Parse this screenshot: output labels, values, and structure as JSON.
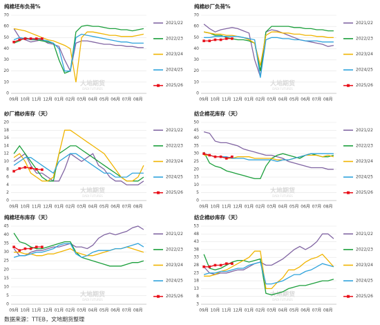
{
  "source": "数据来源：TTEB，文地期货整理",
  "watermark": {
    "cn": "大地期货",
    "en": "DADI FUTURES"
  },
  "chart_data": [
    {
      "type": "line",
      "title": "纯棉坯布负荷%",
      "categories": [
        "09月",
        null,
        "10月",
        null,
        "11月",
        null,
        "12月",
        null,
        "01月",
        null,
        "02月",
        null,
        "03月",
        null,
        "04月",
        null,
        "05月",
        null,
        "06月",
        null,
        "07月",
        null,
        "08月",
        null
      ],
      "ylim": [
        0,
        70
      ],
      "yticks": [
        0,
        10,
        20,
        30,
        40,
        50,
        60,
        70
      ],
      "grid": true,
      "series": [
        {
          "name": "2021/22",
          "color": "#8064a2",
          "values": [
            58,
            50,
            48,
            46,
            47,
            48,
            45,
            44,
            42,
            30,
            20,
            45,
            47,
            47,
            46,
            45,
            44,
            44,
            43,
            43,
            42,
            42,
            41,
            41
          ]
        },
        {
          "name": "2022/23",
          "color": "#1a9e3a",
          "values": [
            45,
            47,
            50,
            48,
            48,
            47,
            46,
            45,
            30,
            18,
            20,
            55,
            60,
            61,
            60,
            60,
            59,
            58,
            58,
            57,
            57,
            56,
            57,
            58
          ]
        },
        {
          "name": "2023/24",
          "color": "#f0b400",
          "values": [
            58,
            57,
            56,
            54,
            52,
            50,
            48,
            47,
            45,
            43,
            40,
            10,
            50,
            55,
            55,
            54,
            53,
            52,
            52,
            51,
            51,
            51,
            52,
            53
          ]
        },
        {
          "name": "2024/25",
          "color": "#2ea3dc",
          "values": [
            48,
            50,
            49,
            48,
            49,
            48,
            47,
            45,
            40,
            20,
            20,
            50,
            53,
            52,
            51,
            50,
            49,
            48,
            47,
            46,
            46,
            45,
            45,
            45
          ]
        },
        {
          "name": "2025/26",
          "color": "#e8101a",
          "marker": "square",
          "values": [
            46,
            48,
            49,
            49,
            49,
            49,
            null,
            null,
            null,
            null,
            null,
            null,
            null,
            null,
            null,
            null,
            null,
            null,
            null,
            null,
            null,
            null,
            null,
            null
          ]
        }
      ]
    },
    {
      "type": "line",
      "title": "纯棉纱厂负荷%",
      "categories": [
        "09月",
        null,
        "10月",
        null,
        "11月",
        null,
        "12月",
        null,
        "01月",
        null,
        "02月",
        null,
        "03月",
        null,
        "04月",
        null,
        "05月",
        null,
        "06月",
        null,
        "07月",
        null,
        "08月",
        null
      ],
      "ylim": [
        0,
        70
      ],
      "yticks": [
        0,
        10,
        20,
        30,
        40,
        50,
        60,
        70
      ],
      "grid": true,
      "series": [
        {
          "name": "2021/22",
          "color": "#8064a2",
          "values": [
            62,
            58,
            55,
            57,
            58,
            59,
            58,
            56,
            54,
            30,
            15,
            55,
            57,
            56,
            54,
            52,
            50,
            48,
            47,
            46,
            45,
            44,
            42,
            43
          ]
        },
        {
          "name": "2022/23",
          "color": "#1a9e3a",
          "values": [
            55,
            54,
            52,
            52,
            50,
            49,
            48,
            48,
            47,
            45,
            20,
            55,
            60,
            60,
            60,
            60,
            59,
            59,
            58,
            58,
            57,
            57,
            56,
            56
          ]
        },
        {
          "name": "2023/24",
          "color": "#f0b400",
          "values": [
            55,
            54,
            53,
            53,
            52,
            52,
            51,
            50,
            48,
            45,
            25,
            52,
            55,
            55,
            54,
            54,
            53,
            53,
            52,
            52,
            51,
            51,
            50,
            50
          ]
        },
        {
          "name": "2024/25",
          "color": "#2ea3dc",
          "values": [
            50,
            50,
            51,
            51,
            51,
            51,
            51,
            50,
            49,
            48,
            14,
            48,
            50,
            50,
            49,
            49,
            48,
            48,
            47,
            47,
            47,
            46,
            46,
            46
          ]
        },
        {
          "name": "2025/26",
          "color": "#e8101a",
          "marker": "square",
          "values": [
            47,
            47,
            48,
            48,
            49,
            49,
            null,
            null,
            null,
            null,
            null,
            null,
            null,
            null,
            null,
            null,
            null,
            null,
            null,
            null,
            null,
            null,
            null,
            null
          ]
        }
      ]
    },
    {
      "type": "line",
      "title": "纱厂棉纱库存（天）",
      "categories": [
        "09月",
        null,
        "10月",
        null,
        "11月",
        null,
        "12月",
        null,
        "01月",
        null,
        "02月",
        null,
        "03月",
        null,
        "04月",
        null,
        "05月",
        null,
        "06月",
        null,
        "07月",
        null,
        "08月",
        null
      ],
      "ylim": [
        0,
        20
      ],
      "yticks": [
        0,
        2,
        4,
        6,
        8,
        10,
        12,
        14,
        16,
        18,
        20
      ],
      "grid": true,
      "series": [
        {
          "name": "2021/22",
          "color": "#8064a2",
          "values": [
            10,
            11,
            12,
            9,
            7,
            7,
            6,
            5,
            5,
            8,
            12,
            11,
            10,
            11,
            12,
            9,
            8,
            6,
            5,
            5,
            4,
            4,
            4,
            5
          ]
        },
        {
          "name": "2022/23",
          "color": "#1a9e3a",
          "values": [
            12,
            14,
            12,
            10,
            8,
            6,
            5,
            5,
            12,
            13,
            14,
            14,
            13,
            12,
            11,
            10,
            9,
            8,
            7,
            6,
            5,
            5,
            5,
            6
          ]
        },
        {
          "name": "2023/24",
          "color": "#f0b400",
          "values": [
            11,
            12,
            10,
            7,
            6,
            5,
            5,
            6,
            12,
            18,
            18,
            17,
            16,
            15,
            14,
            13,
            12,
            10,
            8,
            6,
            5,
            5,
            6,
            9
          ]
        },
        {
          "name": "2024/25",
          "color": "#2ea3dc",
          "values": [
            9,
            10,
            11,
            11,
            10,
            9,
            8,
            7,
            10,
            11,
            12,
            12,
            11,
            10,
            9,
            8,
            7,
            7,
            6,
            6,
            6,
            7,
            7,
            7
          ]
        },
        {
          "name": "2025/26",
          "color": "#e8101a",
          "marker": "square",
          "values": [
            7.5,
            8.2,
            8.5,
            8.3,
            8.0,
            7.9,
            null,
            null,
            null,
            null,
            null,
            null,
            null,
            null,
            null,
            null,
            null,
            null,
            null,
            null,
            null,
            null,
            null,
            null
          ]
        }
      ]
    },
    {
      "type": "line",
      "title": "纺企棉花库存（天）",
      "categories": [
        "09月",
        null,
        "10月",
        null,
        "11月",
        null,
        "12月",
        null,
        "01月",
        null,
        "02月",
        null,
        "03月",
        null,
        "04月",
        null,
        "05月",
        null,
        "06月",
        null,
        "07月",
        null,
        "08月",
        null
      ],
      "ylim": [
        0,
        50
      ],
      "yticks": [
        0,
        5,
        10,
        15,
        20,
        25,
        30,
        35,
        40,
        45,
        50
      ],
      "grid": true,
      "series": [
        {
          "name": "2021/22",
          "color": "#8064a2",
          "values": [
            44,
            43,
            38,
            37,
            37,
            36,
            35,
            33,
            32,
            31,
            30,
            29,
            29,
            28,
            27,
            25,
            24,
            23,
            22,
            21,
            21,
            21,
            20,
            20
          ]
        },
        {
          "name": "2022/23",
          "color": "#1a9e3a",
          "values": [
            31,
            24,
            22,
            21,
            19,
            18,
            17,
            16,
            15,
            14,
            14,
            22,
            27,
            29,
            30,
            29,
            28,
            27,
            29,
            30,
            29,
            28,
            28,
            29
          ]
        },
        {
          "name": "2023/24",
          "color": "#f0b400",
          "values": [
            29,
            29,
            28,
            28,
            27,
            27,
            28,
            28,
            28,
            27,
            27,
            27,
            27,
            26,
            26,
            26,
            27,
            28,
            29,
            29,
            29,
            28,
            29,
            28
          ]
        },
        {
          "name": "2024/25",
          "color": "#2ea3dc",
          "values": [
            30,
            29,
            28,
            28,
            28,
            27,
            27,
            27,
            26,
            26,
            26,
            26,
            26,
            25,
            26,
            26,
            27,
            28,
            29,
            30,
            30,
            30,
            30,
            30
          ]
        },
        {
          "name": "2025/26",
          "color": "#e8101a",
          "marker": "square",
          "values": [
            30,
            29,
            28,
            28,
            27,
            28,
            null,
            null,
            null,
            null,
            null,
            null,
            null,
            null,
            null,
            null,
            null,
            null,
            null,
            null,
            null,
            null,
            null,
            null
          ]
        }
      ]
    },
    {
      "type": "line",
      "title": "纯棉坯布库存（天）",
      "categories": [
        "09月",
        null,
        "10月",
        null,
        "11月",
        null,
        "12月",
        null,
        "01月",
        null,
        "02月",
        null,
        "03月",
        null,
        "04月",
        null,
        "05月",
        null,
        "06月",
        null,
        "07月",
        null,
        "08月",
        null
      ],
      "ylim": [
        0,
        45
      ],
      "yticks": [
        0,
        5,
        10,
        15,
        20,
        25,
        30,
        35,
        40,
        45
      ],
      "grid": true,
      "series": [
        {
          "name": "2021/22",
          "color": "#8064a2",
          "values": [
            32,
            28,
            28,
            30,
            31,
            31,
            32,
            33,
            33,
            34,
            35,
            33,
            33,
            32,
            34,
            38,
            40,
            41,
            40,
            41,
            42,
            44,
            45,
            43
          ]
        },
        {
          "name": "2022/23",
          "color": "#1a9e3a",
          "values": [
            41,
            36,
            35,
            33,
            32,
            32,
            33,
            34,
            35,
            36,
            36,
            30,
            27,
            26,
            25,
            24,
            23,
            22,
            22,
            22,
            23,
            24,
            24,
            25
          ]
        },
        {
          "name": "2023/24",
          "color": "#f0b400",
          "values": [
            30,
            30,
            29,
            29,
            28,
            28,
            29,
            29,
            30,
            31,
            32,
            30,
            29,
            28,
            28,
            29,
            30,
            31,
            32,
            32,
            33,
            32,
            31,
            30
          ]
        },
        {
          "name": "2024/25",
          "color": "#2ea3dc",
          "values": [
            27,
            28,
            28,
            29,
            30,
            30,
            31,
            32,
            34,
            35,
            35,
            29,
            27,
            28,
            30,
            31,
            31,
            31,
            32,
            32,
            33,
            34,
            35,
            33
          ]
        },
        {
          "name": "2025/26",
          "color": "#e8101a",
          "marker": "square",
          "values": [
            33,
            31,
            32,
            32,
            33,
            33,
            null,
            null,
            null,
            null,
            null,
            null,
            null,
            null,
            null,
            null,
            null,
            null,
            null,
            null,
            null,
            null,
            null,
            null
          ]
        }
      ]
    },
    {
      "type": "line",
      "title": "纺企棉纱库存（天）",
      "categories": [
        "09月",
        null,
        "10月",
        null,
        "11月",
        null,
        "12月",
        null,
        "01月",
        null,
        "02月",
        null,
        "03月",
        null,
        "04月",
        null,
        "05月",
        null,
        "06月",
        null,
        "07月",
        null,
        "08月",
        null
      ],
      "ylim": [
        3,
        53
      ],
      "yticks": [
        3,
        8,
        13,
        18,
        23,
        28,
        33,
        38,
        43,
        48,
        53
      ],
      "grid": true,
      "series": [
        {
          "name": "2021/22",
          "color": "#8064a2",
          "values": [
            27,
            23,
            22,
            23,
            23,
            24,
            25,
            25,
            27,
            29,
            30,
            28,
            28,
            30,
            32,
            35,
            38,
            40,
            38,
            40,
            43,
            48,
            48,
            45
          ]
        },
        {
          "name": "2022/23",
          "color": "#1a9e3a",
          "values": [
            35,
            26,
            25,
            26,
            28,
            30,
            31,
            31,
            30,
            31,
            32,
            10,
            9,
            10,
            11,
            13,
            14,
            15,
            15,
            16,
            17,
            18,
            18,
            19
          ]
        },
        {
          "name": "2023/24",
          "color": "#f0b400",
          "values": [
            21,
            21,
            22,
            24,
            25,
            27,
            29,
            31,
            33,
            37,
            37,
            13,
            13,
            17,
            20,
            25,
            25,
            27,
            30,
            32,
            33,
            35,
            31,
            27
          ]
        },
        {
          "name": "2024/25",
          "color": "#2ea3dc",
          "values": [
            22,
            23,
            23,
            24,
            24,
            25,
            26,
            26,
            28,
            29,
            30,
            16,
            16,
            17,
            18,
            20,
            22,
            22,
            24,
            25,
            27,
            29,
            28,
            27
          ]
        },
        {
          "name": "2025/26",
          "color": "#e8101a",
          "marker": "square",
          "values": [
            27,
            27,
            28,
            28,
            29,
            29,
            null,
            null,
            null,
            null,
            null,
            null,
            null,
            null,
            null,
            null,
            null,
            null,
            null,
            null,
            null,
            null,
            null,
            null
          ]
        }
      ]
    }
  ]
}
